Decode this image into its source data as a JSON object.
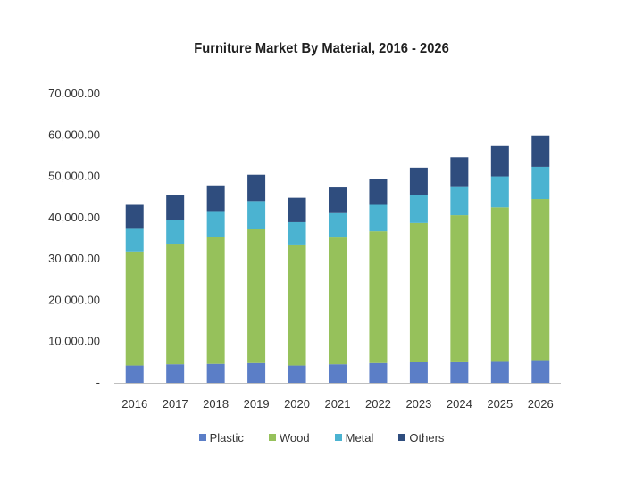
{
  "colors": {
    "plastic": "#5b7ec7",
    "wood": "#96c15b",
    "metal": "#4bb3d1",
    "others": "#2f4d7e",
    "axis": "#bfbfbf"
  },
  "chart_data": {
    "type": "bar",
    "stacked": true,
    "title": "Furniture Market By Material, 2016 - 2026",
    "xlabel": "",
    "ylabel": "",
    "ylim": [
      0,
      70000
    ],
    "yticks": [
      "-",
      "10,000.00",
      "20,000.00",
      "30,000.00",
      "40,000.00",
      "50,000.00",
      "60,000.00",
      "70,000.00"
    ],
    "grid": false,
    "legend_position": "bottom",
    "categories": [
      "2016",
      "2017",
      "2018",
      "2019",
      "2020",
      "2021",
      "2022",
      "2023",
      "2024",
      "2025",
      "2026"
    ],
    "series": [
      {
        "name": "Plastic",
        "values": [
          4200,
          4500,
          4600,
          4800,
          4200,
          4500,
          4800,
          5000,
          5200,
          5300,
          5500
        ]
      },
      {
        "name": "Wood",
        "values": [
          27600,
          29200,
          30800,
          32400,
          29300,
          30700,
          31900,
          33700,
          35400,
          37200,
          39000
        ]
      },
      {
        "name": "Metal",
        "values": [
          5700,
          5700,
          6200,
          6800,
          5400,
          5900,
          6400,
          6700,
          7000,
          7500,
          7800
        ]
      },
      {
        "name": "Others",
        "values": [
          5600,
          6100,
          6200,
          6400,
          5900,
          6200,
          6300,
          6700,
          7000,
          7300,
          7600
        ]
      }
    ]
  }
}
